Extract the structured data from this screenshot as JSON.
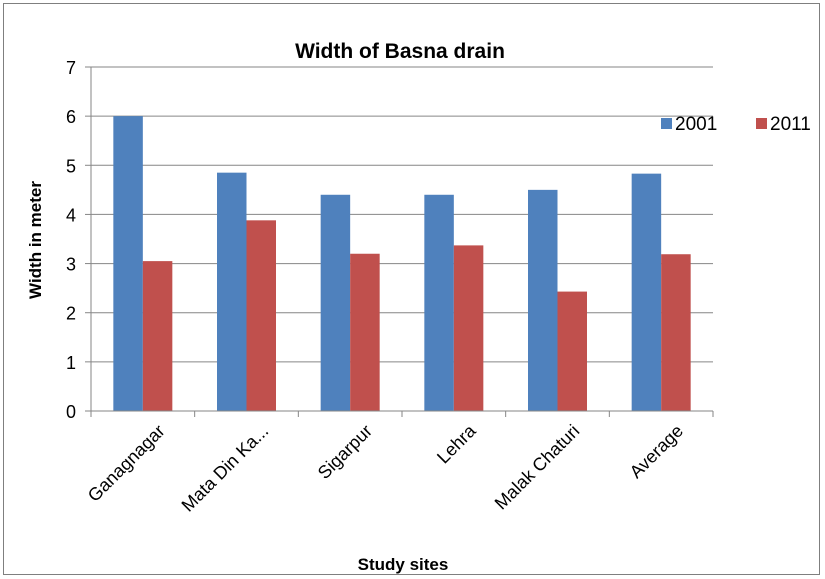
{
  "chart_data": {
    "type": "bar",
    "title": "Width of Basna drain",
    "xlabel": "Study sites",
    "ylabel": "Width in meter",
    "ylim": [
      0,
      7
    ],
    "yticks": [
      0,
      1,
      2,
      3,
      4,
      5,
      6,
      7
    ],
    "grid": true,
    "legend_position": "right",
    "categories": [
      "Ganagnagar",
      "Mata Din Ka...",
      "Sigarpur",
      "Lehra",
      "Malak Chaturi",
      "Average"
    ],
    "series": [
      {
        "name": "2001",
        "color": "#4f81bd",
        "values": [
          6.0,
          4.85,
          4.4,
          4.4,
          4.5,
          4.83
        ]
      },
      {
        "name": "2011",
        "color": "#c0504d",
        "values": [
          3.05,
          3.88,
          3.2,
          3.37,
          2.43,
          3.19
        ]
      }
    ]
  }
}
